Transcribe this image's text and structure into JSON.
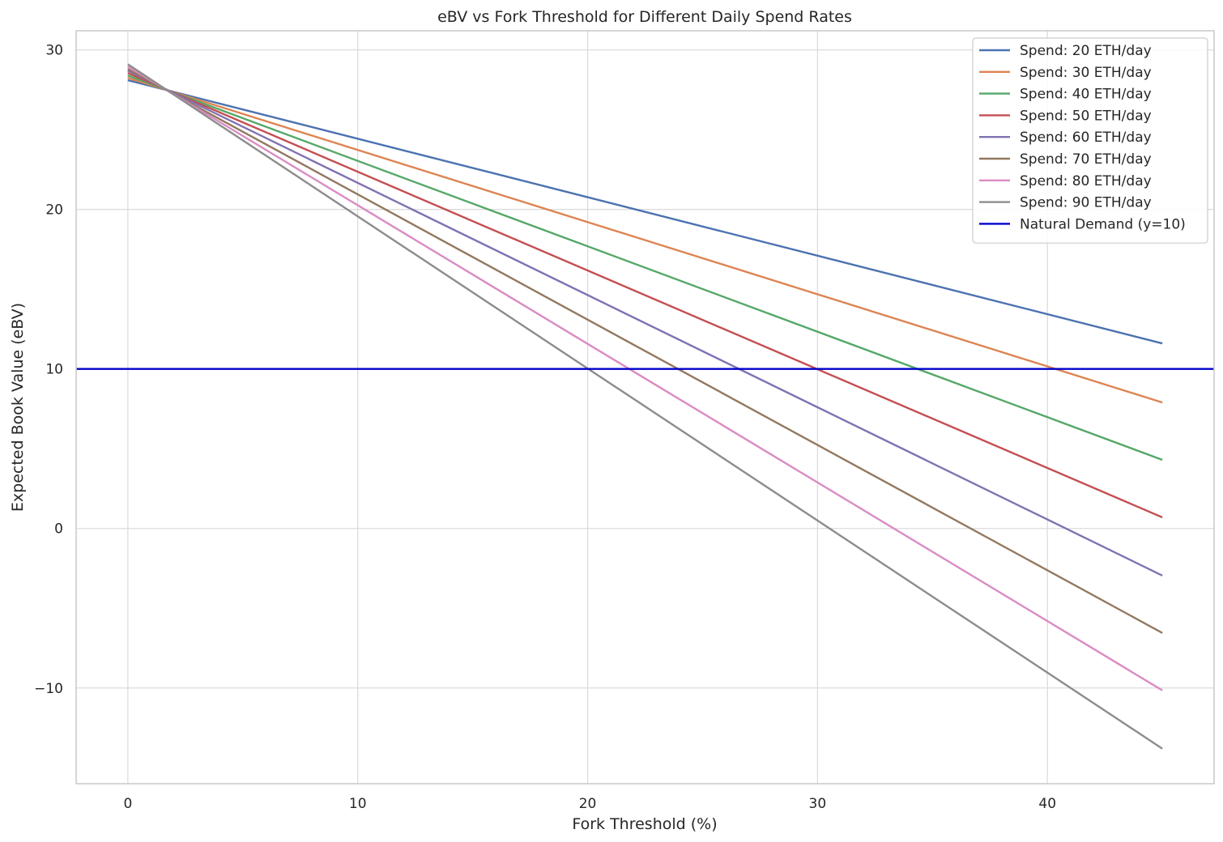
{
  "chart_data": {
    "type": "line",
    "title": "eBV vs Fork Threshold for Different Daily Spend Rates",
    "xlabel": "Fork Threshold (%)",
    "ylabel": "Expected Book Value (eBV)",
    "xlim": [
      -2.25,
      47.25
    ],
    "ylim": [
      -16,
      31.2
    ],
    "xticks": [
      0,
      10,
      20,
      30,
      40
    ],
    "yticks": [
      -10,
      0,
      10,
      20,
      30
    ],
    "grid": true,
    "legend_position": "top-right",
    "series": [
      {
        "name": "Spend: 20 ETH/day",
        "color": "#4c72b0",
        "x": [
          0,
          45
        ],
        "y": [
          28.1,
          11.6
        ]
      },
      {
        "name": "Spend: 30 ETH/day",
        "color": "#dd8452",
        "x": [
          0,
          45
        ],
        "y": [
          28.25,
          7.9
        ]
      },
      {
        "name": "Spend: 40 ETH/day",
        "color": "#55a868",
        "x": [
          0,
          45
        ],
        "y": [
          28.4,
          4.3
        ]
      },
      {
        "name": "Spend: 50 ETH/day",
        "color": "#c44e52",
        "x": [
          0,
          45
        ],
        "y": [
          28.55,
          0.7
        ]
      },
      {
        "name": "Spend: 60 ETH/day",
        "color": "#8172b3",
        "x": [
          0,
          45
        ],
        "y": [
          28.7,
          -2.95
        ]
      },
      {
        "name": "Spend: 70 ETH/day",
        "color": "#937860",
        "x": [
          0,
          45
        ],
        "y": [
          28.8,
          -6.55
        ]
      },
      {
        "name": "Spend: 80 ETH/day",
        "color": "#da8bc3",
        "x": [
          0,
          45
        ],
        "y": [
          28.95,
          -10.15
        ]
      },
      {
        "name": "Spend: 90 ETH/day",
        "color": "#8c8c8c",
        "x": [
          0,
          45
        ],
        "y": [
          29.1,
          -13.8
        ]
      }
    ],
    "hlines": [
      {
        "name": "Natural Demand (y=10)",
        "color": "#0000cc",
        "y": 10
      }
    ]
  }
}
